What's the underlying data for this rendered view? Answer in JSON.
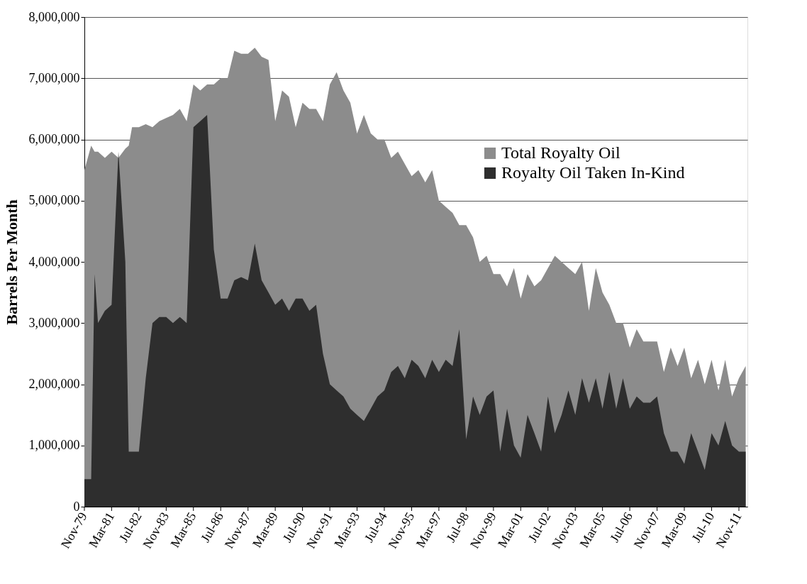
{
  "chart_data": {
    "type": "area",
    "ylabel": "Barrels Per Month",
    "x": [
      "1979-11",
      "1980-03",
      "1980-05",
      "1980-07",
      "1980-11",
      "1981-03",
      "1981-07",
      "1981-11",
      "1982-01",
      "1982-03",
      "1982-07",
      "1982-11",
      "1983-03",
      "1983-07",
      "1983-11",
      "1984-03",
      "1984-07",
      "1984-11",
      "1985-03",
      "1985-07",
      "1985-11",
      "1986-03",
      "1986-07",
      "1986-11",
      "1987-03",
      "1987-07",
      "1987-11",
      "1988-03",
      "1988-07",
      "1988-11",
      "1989-03",
      "1989-07",
      "1989-11",
      "1990-03",
      "1990-07",
      "1990-11",
      "1991-03",
      "1991-07",
      "1991-11",
      "1992-03",
      "1992-07",
      "1992-11",
      "1993-03",
      "1993-07",
      "1993-11",
      "1994-03",
      "1994-07",
      "1994-11",
      "1995-03",
      "1995-07",
      "1995-11",
      "1996-03",
      "1996-07",
      "1996-11",
      "1997-03",
      "1997-07",
      "1997-11",
      "1998-03",
      "1998-07",
      "1998-11",
      "1999-03",
      "1999-07",
      "1999-11",
      "2000-03",
      "2000-07",
      "2000-11",
      "2001-03",
      "2001-07",
      "2001-11",
      "2002-03",
      "2002-07",
      "2002-11",
      "2003-03",
      "2003-07",
      "2003-11",
      "2004-03",
      "2004-07",
      "2004-11",
      "2005-03",
      "2005-07",
      "2005-11",
      "2006-03",
      "2006-07",
      "2006-11",
      "2007-03",
      "2007-07",
      "2007-11",
      "2008-03",
      "2008-07",
      "2008-11",
      "2009-03",
      "2009-07",
      "2009-11",
      "2010-03",
      "2010-07",
      "2010-11",
      "2011-03",
      "2011-07",
      "2011-11",
      "2012-03"
    ],
    "series": [
      {
        "name": "Total Royalty Oil",
        "color": "#8c8c8c",
        "values": [
          5500000,
          5900000,
          5800000,
          5800000,
          5700000,
          5800000,
          5700000,
          5850000,
          5900000,
          6200000,
          6200000,
          6250000,
          6200000,
          6300000,
          6350000,
          6400000,
          6500000,
          6300000,
          6900000,
          6800000,
          6900000,
          6900000,
          7000000,
          7000000,
          7450000,
          7400000,
          7400000,
          7500000,
          7350000,
          7300000,
          6300000,
          6800000,
          6700000,
          6200000,
          6600000,
          6500000,
          6500000,
          6300000,
          6900000,
          7100000,
          6800000,
          6600000,
          6100000,
          6400000,
          6100000,
          6000000,
          6000000,
          5700000,
          5800000,
          5600000,
          5400000,
          5500000,
          5300000,
          5500000,
          5000000,
          4900000,
          4800000,
          4600000,
          4600000,
          4400000,
          4000000,
          4100000,
          3800000,
          3800000,
          3600000,
          3900000,
          3400000,
          3800000,
          3600000,
          3700000,
          3900000,
          4100000,
          4000000,
          3900000,
          3800000,
          4000000,
          3200000,
          3900000,
          3500000,
          3300000,
          3000000,
          3000000,
          2600000,
          2900000,
          2700000,
          2700000,
          2700000,
          2200000,
          2600000,
          2300000,
          2600000,
          2100000,
          2400000,
          2000000,
          2400000,
          1900000,
          2400000,
          1800000,
          2100000,
          2300000
        ]
      },
      {
        "name": "Royalty Oil Taken In-Kind",
        "color": "#2e2e2e",
        "values": [
          450000,
          450000,
          3800000,
          3000000,
          3200000,
          3300000,
          5800000,
          4000000,
          900000,
          900000,
          900000,
          2100000,
          3000000,
          3100000,
          3100000,
          3000000,
          3100000,
          3000000,
          6200000,
          6300000,
          6400000,
          4200000,
          3400000,
          3400000,
          3700000,
          3750000,
          3700000,
          4300000,
          3700000,
          3500000,
          3300000,
          3400000,
          3200000,
          3400000,
          3400000,
          3200000,
          3300000,
          2500000,
          2000000,
          1900000,
          1800000,
          1600000,
          1500000,
          1400000,
          1600000,
          1800000,
          1900000,
          2200000,
          2300000,
          2100000,
          2400000,
          2300000,
          2100000,
          2400000,
          2200000,
          2400000,
          2300000,
          2900000,
          1100000,
          1800000,
          1500000,
          1800000,
          1900000,
          900000,
          1600000,
          1000000,
          800000,
          1500000,
          1200000,
          900000,
          1800000,
          1200000,
          1500000,
          1900000,
          1500000,
          2100000,
          1700000,
          2100000,
          1600000,
          2200000,
          1600000,
          2100000,
          1600000,
          1800000,
          1700000,
          1700000,
          1800000,
          1200000,
          900000,
          900000,
          700000,
          1200000,
          900000,
          600000,
          1200000,
          1000000,
          1400000,
          1000000,
          900000,
          900000
        ]
      }
    ],
    "xlim": [
      "1979-11",
      "2012-04"
    ],
    "xticks": [
      {
        "value": "1979-11",
        "label": "Nov-79"
      },
      {
        "value": "1981-03",
        "label": "Mar-81"
      },
      {
        "value": "1982-07",
        "label": "Jul-82"
      },
      {
        "value": "1983-11",
        "label": "Nov-83"
      },
      {
        "value": "1985-03",
        "label": "Mar-85"
      },
      {
        "value": "1986-07",
        "label": "Jul-86"
      },
      {
        "value": "1987-11",
        "label": "Nov-87"
      },
      {
        "value": "1989-03",
        "label": "Mar-89"
      },
      {
        "value": "1990-07",
        "label": "Jul-90"
      },
      {
        "value": "1991-11",
        "label": "Nov-91"
      },
      {
        "value": "1993-03",
        "label": "Mar-93"
      },
      {
        "value": "1994-07",
        "label": "Jul-94"
      },
      {
        "value": "1995-11",
        "label": "Nov-95"
      },
      {
        "value": "1997-03",
        "label": "Mar-97"
      },
      {
        "value": "1998-07",
        "label": "Jul-98"
      },
      {
        "value": "1999-11",
        "label": "Nov-99"
      },
      {
        "value": "2001-03",
        "label": "Mar-01"
      },
      {
        "value": "2002-07",
        "label": "Jul-02"
      },
      {
        "value": "2003-11",
        "label": "Nov-03"
      },
      {
        "value": "2005-03",
        "label": "Mar-05"
      },
      {
        "value": "2006-07",
        "label": "Jul-06"
      },
      {
        "value": "2007-11",
        "label": "Nov-07"
      },
      {
        "value": "2009-03",
        "label": "Mar-09"
      },
      {
        "value": "2010-07",
        "label": "Jul-10"
      },
      {
        "value": "2011-11",
        "label": "Nov-11"
      }
    ],
    "ylim": [
      0,
      8000000
    ],
    "yticks": [
      {
        "value": 0,
        "label": "0"
      },
      {
        "value": 1000000,
        "label": "1,000,000"
      },
      {
        "value": 2000000,
        "label": "2,000,000"
      },
      {
        "value": 3000000,
        "label": "3,000,000"
      },
      {
        "value": 4000000,
        "label": "4,000,000"
      },
      {
        "value": 5000000,
        "label": "5,000,000"
      },
      {
        "value": 6000000,
        "label": "6,000,000"
      },
      {
        "value": 7000000,
        "label": "7,000,000"
      },
      {
        "value": 8000000,
        "label": "8,000,000"
      }
    ],
    "grid": "y",
    "legend": "right"
  }
}
